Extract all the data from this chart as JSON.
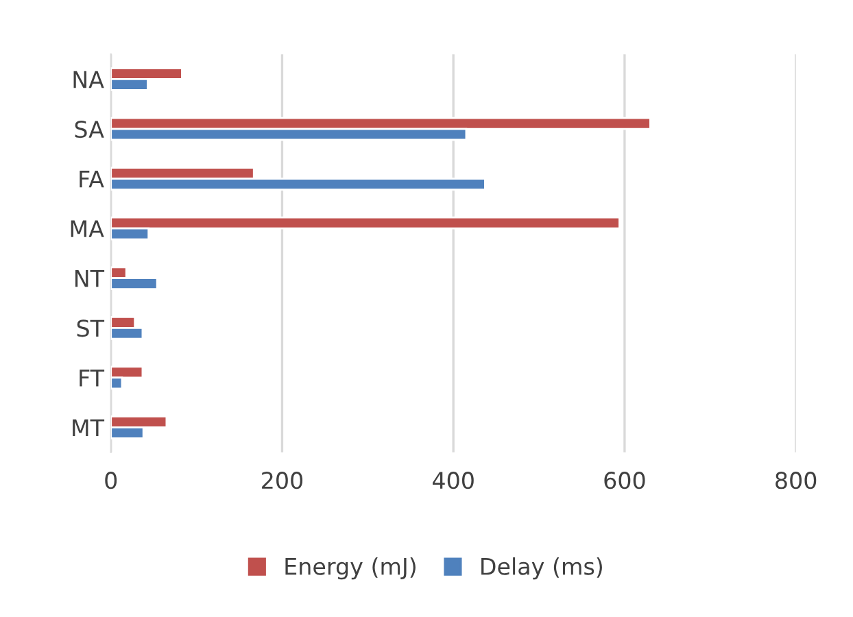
{
  "chart_data": {
    "type": "bar",
    "orientation": "horizontal",
    "categories": [
      "NA",
      "SA",
      "FA",
      "MA",
      "NT",
      "ST",
      "FT",
      "MT"
    ],
    "series": [
      {
        "name": "Energy (mJ)",
        "color": "#c0504d",
        "values": [
          83,
          630,
          167,
          594,
          18,
          28,
          37,
          65
        ]
      },
      {
        "name": "Delay (ms)",
        "color": "#4f81bd",
        "values": [
          43,
          415,
          437,
          44,
          54,
          37,
          13,
          38
        ]
      }
    ],
    "xlim": [
      0,
      800
    ],
    "xticks": [
      0,
      200,
      400,
      600,
      800
    ],
    "grid": "x",
    "legend": "bottom"
  }
}
